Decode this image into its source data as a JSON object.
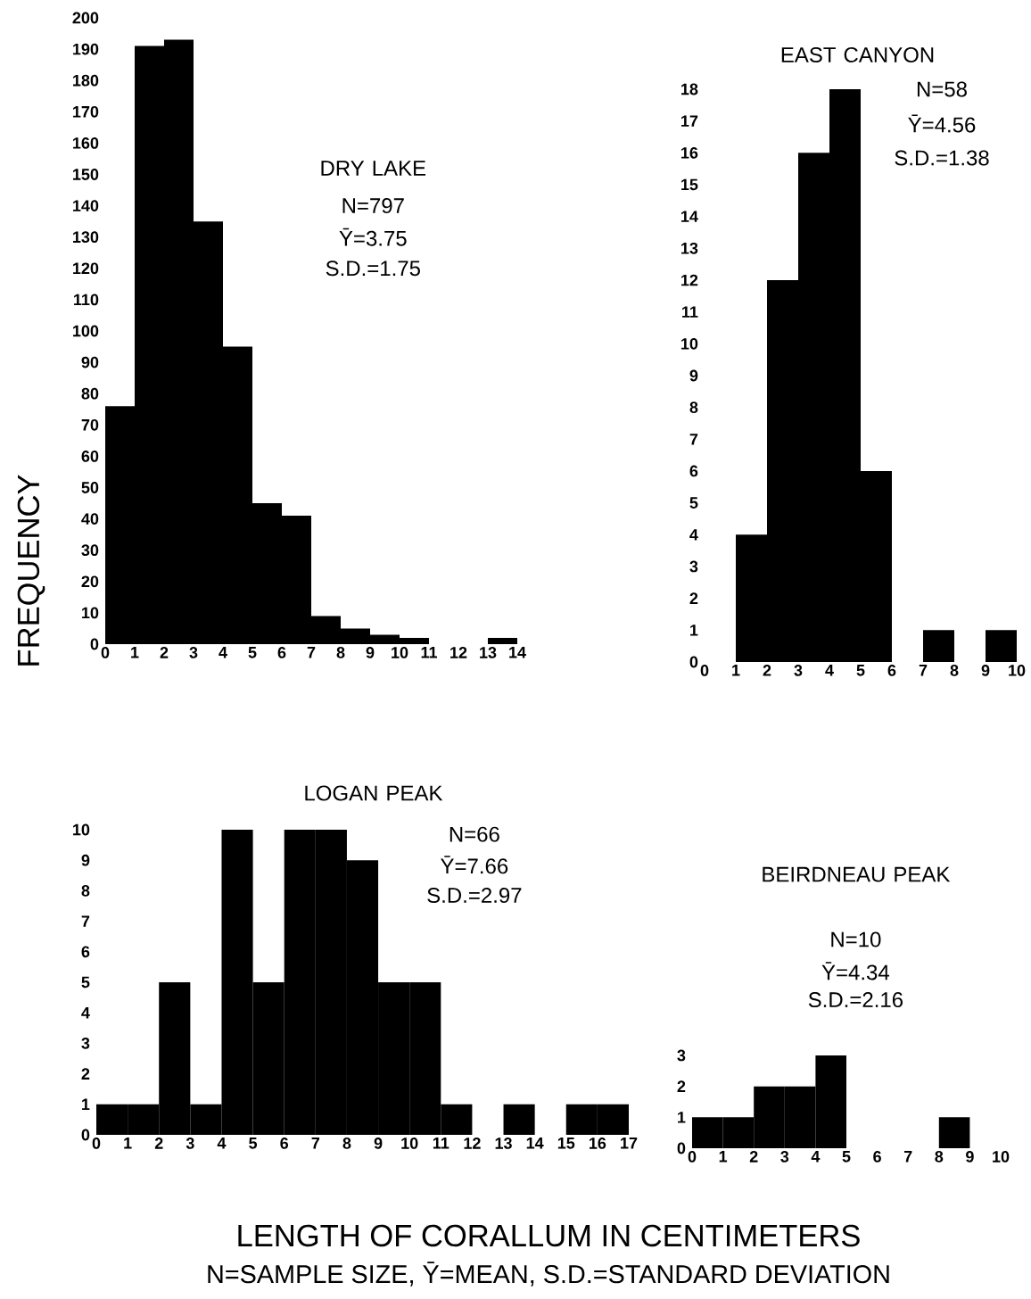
{
  "chart_data": [
    {
      "type": "histogram",
      "title": "DRY LAKE",
      "ylabel": "FREQUENCY",
      "annotations": [
        "N=797",
        "Ȳ=3.75",
        "S.D.=1.75"
      ],
      "color": "#000000",
      "bins": [
        0,
        1,
        2,
        3,
        4,
        5,
        6,
        7,
        8,
        9,
        10,
        11,
        12,
        13,
        14
      ],
      "values": [
        76,
        191,
        193,
        135,
        95,
        45,
        41,
        9,
        5,
        3,
        2,
        0,
        0,
        2
      ],
      "xlim": [
        0,
        14
      ],
      "xticks": [
        0,
        1,
        2,
        3,
        4,
        5,
        6,
        7,
        8,
        9,
        10,
        11,
        12,
        13,
        14
      ],
      "ylim": [
        0,
        200
      ],
      "yticks": [
        0,
        10,
        20,
        30,
        40,
        50,
        60,
        70,
        80,
        90,
        100,
        110,
        120,
        130,
        140,
        150,
        160,
        170,
        180,
        190,
        200
      ],
      "grid": false
    },
    {
      "type": "histogram",
      "title": "EAST CANYON",
      "annotations": [
        "N=58",
        "Ȳ=4.56",
        "S.D.=1.38"
      ],
      "color": "#000000",
      "bins": [
        0,
        1,
        2,
        3,
        4,
        5,
        6,
        7,
        8,
        9,
        10
      ],
      "values": [
        0,
        4,
        12,
        16,
        18,
        6,
        0,
        1,
        0,
        1
      ],
      "xlim": [
        0,
        10
      ],
      "xticks": [
        0,
        1,
        2,
        3,
        4,
        5,
        6,
        7,
        8,
        9,
        10
      ],
      "ylim": [
        0,
        18
      ],
      "yticks": [
        0,
        1,
        2,
        3,
        4,
        5,
        6,
        7,
        8,
        9,
        10,
        11,
        12,
        13,
        14,
        15,
        16,
        17,
        18
      ],
      "grid": false
    },
    {
      "type": "histogram",
      "title": "LOGAN PEAK",
      "xlabel": "LENGTH OF CORALLUM IN CENTIMETERS",
      "annotations": [
        "N=66",
        "Ȳ=7.66",
        "S.D.=2.97",
        "N=SAMPLE SIZE, Ȳ=MEAN, S.D.=STANDARD DEVIATION"
      ],
      "color": "#000000",
      "bins": [
        0,
        1,
        2,
        3,
        4,
        5,
        6,
        7,
        8,
        9,
        10,
        11,
        12,
        13,
        14,
        15,
        16,
        17
      ],
      "values": [
        1,
        1,
        5,
        1,
        10,
        5,
        10,
        10,
        9,
        5,
        5,
        1,
        0,
        1,
        0,
        1,
        1
      ],
      "xlim": [
        0,
        17
      ],
      "xticks": [
        0,
        1,
        2,
        3,
        4,
        5,
        6,
        7,
        8,
        9,
        10,
        11,
        12,
        13,
        14,
        15,
        16,
        17
      ],
      "ylim": [
        0,
        10
      ],
      "yticks": [
        0,
        1,
        2,
        3,
        4,
        5,
        6,
        7,
        8,
        9,
        10
      ],
      "grid": false
    },
    {
      "type": "histogram",
      "title": "BEIRDNEAU PEAK",
      "annotations": [
        "N=10",
        "Ȳ=4.34",
        "S.D.=2.16"
      ],
      "color": "#000000",
      "bins": [
        0,
        1,
        2,
        3,
        4,
        5,
        6,
        7,
        8,
        9,
        10
      ],
      "values": [
        1,
        1,
        2,
        2,
        3,
        0,
        0,
        0,
        1,
        0
      ],
      "xlim": [
        0,
        10
      ],
      "xticks": [
        0,
        1,
        2,
        3,
        4,
        5,
        6,
        7,
        8,
        9,
        10
      ],
      "ylim": [
        0,
        3
      ],
      "yticks": [
        0,
        1,
        2,
        3
      ],
      "grid": false
    }
  ]
}
